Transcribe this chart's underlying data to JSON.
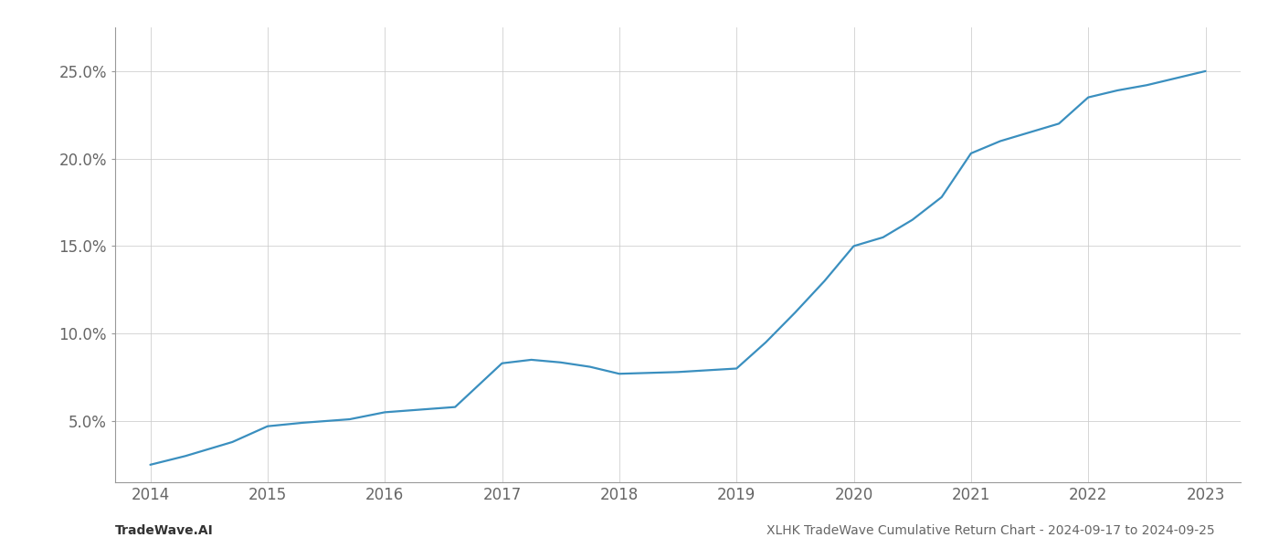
{
  "x_years": [
    2014.0,
    2014.3,
    2014.7,
    2015.0,
    2015.3,
    2015.7,
    2016.0,
    2016.3,
    2016.6,
    2017.0,
    2017.25,
    2017.5,
    2017.75,
    2018.0,
    2018.25,
    2018.5,
    2018.75,
    2019.0,
    2019.25,
    2019.5,
    2019.75,
    2020.0,
    2020.25,
    2020.5,
    2020.75,
    2021.0,
    2021.25,
    2021.5,
    2021.75,
    2022.0,
    2022.25,
    2022.5,
    2022.75,
    2023.0
  ],
  "y_values": [
    2.5,
    3.0,
    3.8,
    4.7,
    4.9,
    5.1,
    5.5,
    5.65,
    5.8,
    8.3,
    8.5,
    8.35,
    8.1,
    7.7,
    7.75,
    7.8,
    7.9,
    8.0,
    9.5,
    11.2,
    13.0,
    15.0,
    15.5,
    16.5,
    17.8,
    20.3,
    21.0,
    21.5,
    22.0,
    23.5,
    23.9,
    24.2,
    24.6,
    25.0
  ],
  "line_color": "#3a8fbf",
  "ytick_labels": [
    "5.0%",
    "10.0%",
    "15.0%",
    "20.0%",
    "25.0%"
  ],
  "ytick_values": [
    5.0,
    10.0,
    15.0,
    20.0,
    25.0
  ],
  "xtick_labels": [
    "2014",
    "2015",
    "2016",
    "2017",
    "2018",
    "2019",
    "2020",
    "2021",
    "2022",
    "2023"
  ],
  "xtick_values": [
    2014,
    2015,
    2016,
    2017,
    2018,
    2019,
    2020,
    2021,
    2022,
    2023
  ],
  "xlim": [
    2013.7,
    2023.3
  ],
  "ylim": [
    1.5,
    27.5
  ],
  "background_color": "#ffffff",
  "grid_color": "#cccccc",
  "footer_left": "TradeWave.AI",
  "footer_right": "XLHK TradeWave Cumulative Return Chart - 2024-09-17 to 2024-09-25",
  "line_width": 1.6,
  "font_color": "#666666",
  "footer_font_size": 10,
  "tick_font_size": 12
}
